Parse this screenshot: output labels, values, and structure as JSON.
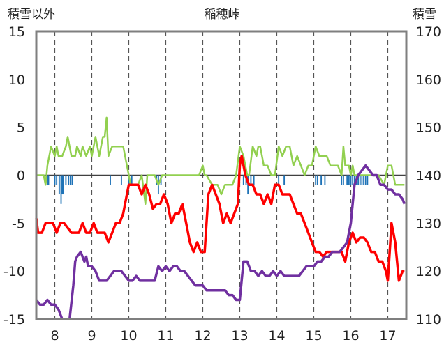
{
  "chart_data": {
    "type": "line",
    "title": "稲穂峠",
    "ylabel_left": "積雪以外",
    "ylabel_right": "積雪",
    "ylim_left": [
      -15,
      15
    ],
    "ylim_right": [
      110,
      170
    ],
    "left_ticks": [
      "15",
      "10",
      "5",
      "0",
      "-5",
      "-10",
      "-15"
    ],
    "right_ticks": [
      "170",
      "160",
      "150",
      "140",
      "130",
      "120",
      "110"
    ],
    "xlim": [
      7.5,
      17.5
    ],
    "x_ticks": [
      "8",
      "9",
      "10",
      "11",
      "12",
      "13",
      "14",
      "15",
      "16",
      "17"
    ],
    "grid": "dashed vertical at day boundaries",
    "colors": {
      "precip_bars": "#1f73b7",
      "green": "#92d050",
      "red": "#ff0000",
      "purple": "#7030a0",
      "frame": "#7f7f7f",
      "grid": "#555555"
    },
    "bars": {
      "axis": "left",
      "x": [
        7.8,
        7.83,
        8.0,
        8.05,
        8.12,
        8.17,
        8.2,
        8.23,
        8.3,
        8.37,
        8.42,
        8.47,
        9.5,
        9.8,
        10.0,
        10.08,
        10.75,
        10.8,
        10.87,
        13.1,
        13.17,
        13.22,
        13.3,
        13.38,
        14.05,
        14.2,
        15.05,
        15.1,
        15.2,
        15.3,
        15.75,
        15.8,
        15.9,
        15.95,
        16.0,
        16.05,
        16.1,
        16.15,
        16.2,
        16.25,
        16.3,
        16.35,
        16.4,
        16.45
      ],
      "values": [
        -1.0,
        -1.0,
        -1.0,
        -1.0,
        -2.0,
        -3.0,
        -2.0,
        -2.0,
        -1.0,
        -1.0,
        -1.0,
        -1.0,
        -1.0,
        -1.0,
        -1.0,
        -1.0,
        -1.0,
        -2.0,
        -1.0,
        -1.0,
        -1.0,
        -2.0,
        -1.0,
        -1.0,
        -1.0,
        -1.0,
        -1.0,
        -1.0,
        -1.0,
        -1.0,
        -1.0,
        -1.0,
        -1.0,
        -1.0,
        -1.0,
        -1.0,
        -1.0,
        -1.0,
        -1.0,
        -1.0,
        -1.0,
        -1.0,
        -1.0,
        -1.0
      ]
    },
    "series": [
      {
        "axis": "left",
        "color": "#92d050",
        "x": [
          7.5,
          7.7,
          7.75,
          7.8,
          7.9,
          8.0,
          8.05,
          8.1,
          8.2,
          8.3,
          8.35,
          8.45,
          8.5,
          8.55,
          8.6,
          8.7,
          8.75,
          8.85,
          8.95,
          9.0,
          9.1,
          9.2,
          9.3,
          9.35,
          9.4,
          9.45,
          9.55,
          9.7,
          9.85,
          9.95,
          10.0,
          10.05,
          10.15,
          10.25,
          10.35,
          10.45,
          10.5,
          10.6,
          10.7,
          10.8,
          10.9,
          11.0,
          11.5,
          11.9,
          12.0,
          12.05,
          12.1,
          12.25,
          12.4,
          12.5,
          12.6,
          12.8,
          12.9,
          13.0,
          13.1,
          13.2,
          13.25,
          13.35,
          13.45,
          13.5,
          13.55,
          13.65,
          13.75,
          13.85,
          13.95,
          14.05,
          14.15,
          14.25,
          14.35,
          14.45,
          14.55,
          14.65,
          14.75,
          14.85,
          14.95,
          15.05,
          15.15,
          15.25,
          15.35,
          15.45,
          15.55,
          15.65,
          15.75,
          15.8,
          15.85,
          15.95,
          16.0,
          16.05,
          16.1,
          16.25,
          16.4,
          16.55,
          16.65,
          16.75,
          16.9,
          17.0,
          17.1,
          17.2,
          17.45
        ],
        "values": [
          0,
          0,
          -1,
          1,
          3,
          2,
          3,
          2,
          2,
          3,
          4,
          2,
          2,
          2,
          3,
          2,
          3,
          2,
          3,
          2,
          4,
          2,
          4,
          4,
          6,
          2,
          3,
          3,
          3,
          1,
          0,
          -1,
          -1,
          -1,
          0,
          -3,
          0,
          0,
          0,
          -1,
          0,
          0,
          0,
          0,
          1,
          0,
          0,
          -1,
          -1,
          -2,
          -1,
          -1,
          0,
          3,
          2,
          0,
          0,
          3,
          2,
          3,
          3,
          1,
          1,
          0,
          0,
          3,
          2,
          3,
          3,
          1,
          2,
          1,
          0,
          1,
          1,
          3,
          2,
          2,
          2,
          1,
          1,
          1,
          0,
          3,
          1,
          1,
          0,
          1,
          0,
          0,
          0,
          0,
          0,
          0,
          -1,
          1,
          1,
          -1,
          -1
        ]
      },
      {
        "axis": "left",
        "color": "#ff0000",
        "x": [
          7.5,
          7.55,
          7.65,
          7.75,
          7.85,
          7.95,
          8.05,
          8.15,
          8.25,
          8.35,
          8.45,
          8.55,
          8.65,
          8.75,
          8.85,
          8.95,
          9.05,
          9.15,
          9.25,
          9.35,
          9.45,
          9.55,
          9.65,
          9.75,
          9.85,
          9.95,
          10.0,
          10.05,
          10.15,
          10.25,
          10.35,
          10.45,
          10.55,
          10.65,
          10.75,
          10.85,
          10.95,
          11.05,
          11.15,
          11.25,
          11.35,
          11.45,
          11.55,
          11.65,
          11.75,
          11.85,
          11.95,
          12.05,
          12.15,
          12.25,
          12.35,
          12.45,
          12.55,
          12.65,
          12.75,
          12.85,
          12.95,
          13.0,
          13.05,
          13.15,
          13.25,
          13.35,
          13.45,
          13.55,
          13.65,
          13.75,
          13.85,
          13.95,
          14.05,
          14.15,
          14.25,
          14.35,
          14.45,
          14.55,
          14.65,
          14.75,
          14.85,
          14.95,
          15.05,
          15.15,
          15.25,
          15.35,
          15.45,
          15.55,
          15.65,
          15.75,
          15.85,
          15.95,
          16.05,
          16.15,
          16.25,
          16.35,
          16.45,
          16.55,
          16.65,
          16.75,
          16.85,
          16.95,
          17.0,
          17.05,
          17.1,
          17.2,
          17.3,
          17.4,
          17.45
        ],
        "values": [
          -4.5,
          -6,
          -6,
          -5,
          -5,
          -5,
          -6,
          -5,
          -5,
          -5.5,
          -6,
          -6,
          -6,
          -5,
          -6,
          -6,
          -5,
          -6,
          -6,
          -6,
          -7,
          -6,
          -5,
          -5,
          -4,
          -2,
          -1,
          -1,
          -1,
          -1,
          -2,
          -1,
          -2,
          -3.5,
          -3,
          -3,
          -2,
          -3,
          -5,
          -4,
          -4,
          -3,
          -5,
          -7,
          -8,
          -7,
          -8,
          -8,
          -2,
          -1,
          -2,
          -3,
          -5,
          -4,
          -5,
          -4,
          -3,
          1,
          2,
          0,
          -1,
          -1,
          -2,
          -2,
          -3,
          -2,
          -3,
          -1,
          -1,
          -2,
          -2,
          -2,
          -3,
          -4,
          -4,
          -5,
          -6,
          -7,
          -8,
          -8,
          -8.5,
          -8,
          -8,
          -8,
          -8,
          -8,
          -9,
          -7,
          -6,
          -7,
          -6.5,
          -6.5,
          -7,
          -8,
          -8,
          -9,
          -9,
          -10,
          -11,
          -8,
          -5,
          -7,
          -11,
          -10,
          -10
        ]
      },
      {
        "axis": "right",
        "color": "#7030a0",
        "x": [
          7.5,
          7.6,
          7.7,
          7.8,
          7.9,
          8.0,
          8.1,
          8.2,
          8.25,
          8.3,
          8.4,
          8.5,
          8.55,
          8.6,
          8.7,
          8.8,
          8.85,
          8.9,
          9.0,
          9.1,
          9.2,
          9.3,
          9.4,
          9.5,
          9.6,
          9.7,
          9.8,
          9.9,
          10.0,
          10.1,
          10.2,
          10.3,
          10.4,
          10.5,
          10.6,
          10.7,
          10.8,
          10.9,
          11.0,
          11.1,
          11.2,
          11.3,
          11.4,
          11.5,
          11.6,
          11.7,
          11.8,
          11.9,
          12.0,
          12.1,
          12.2,
          12.3,
          12.4,
          12.5,
          12.6,
          12.7,
          12.8,
          12.9,
          13.0,
          13.1,
          13.2,
          13.3,
          13.4,
          13.5,
          13.6,
          13.7,
          13.8,
          13.9,
          14.0,
          14.1,
          14.2,
          14.3,
          14.4,
          14.5,
          14.6,
          14.7,
          14.8,
          14.9,
          15.0,
          15.1,
          15.2,
          15.3,
          15.4,
          15.5,
          15.6,
          15.7,
          15.8,
          15.9,
          16.0,
          16.1,
          16.2,
          16.3,
          16.4,
          16.5,
          16.6,
          16.7,
          16.8,
          16.9,
          17.0,
          17.1,
          17.2,
          17.3,
          17.4,
          17.45
        ],
        "values": [
          114,
          113,
          113,
          114,
          113,
          113,
          112,
          110,
          110,
          110,
          110,
          117,
          122,
          123,
          124,
          122,
          123,
          121,
          121,
          120,
          118,
          118,
          118,
          119,
          120,
          120,
          120,
          119,
          118,
          118,
          119,
          118,
          118,
          118,
          118,
          118,
          121,
          120,
          121,
          120,
          121,
          121,
          120,
          120,
          119,
          118,
          117,
          117,
          117,
          116,
          116,
          116,
          116,
          116,
          116,
          115,
          115,
          114,
          114,
          122,
          122,
          120,
          120,
          119,
          120,
          119,
          119,
          120,
          119,
          120,
          119,
          119,
          119,
          119,
          119,
          120,
          121,
          121,
          121,
          122,
          122,
          123,
          123,
          124,
          124,
          124,
          125,
          126,
          130,
          138,
          140,
          141,
          142,
          141,
          140,
          140,
          138,
          138,
          137,
          137,
          136,
          136,
          135,
          134
        ]
      }
    ]
  }
}
